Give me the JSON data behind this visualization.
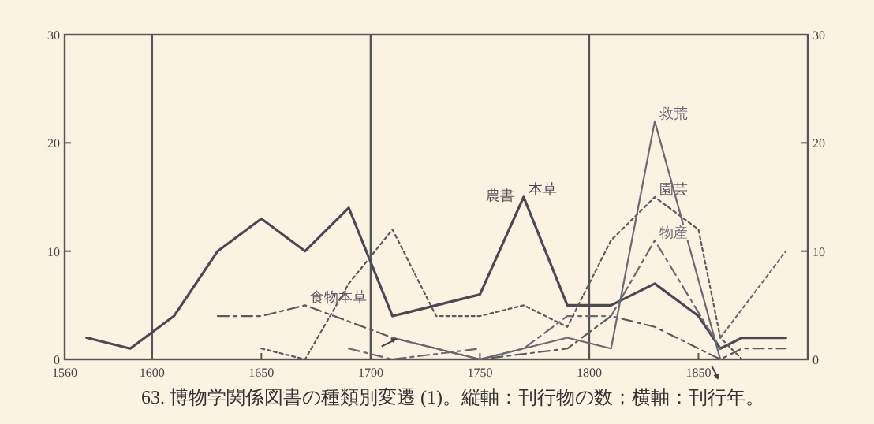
{
  "chart_data": {
    "type": "line",
    "title": "63. 博物学関係図書の種類別変遷 (1)。縦軸：刊行物の数；横軸：刊行年。",
    "xlim": [
      1560,
      1900
    ],
    "xticks": [
      1560,
      1600,
      1650,
      1700,
      1750,
      1800,
      1850
    ],
    "ylim": [
      0,
      30
    ],
    "yticks": [
      0,
      10,
      20,
      30
    ],
    "y2lim": [
      0,
      30
    ],
    "y2ticks": [
      0,
      10,
      20,
      30
    ],
    "grid": false,
    "marker": "none",
    "ref_lines": [
      {
        "axis": "x",
        "value": 1600,
        "color": "#555555"
      },
      {
        "axis": "x",
        "value": 1700,
        "color": "#555555"
      },
      {
        "axis": "x",
        "value": 1800,
        "color": "#555555"
      }
    ],
    "annotations": [
      {
        "text": "農書",
        "x": 1770,
        "y": 15
      }
    ],
    "series": [
      {
        "name": "本草",
        "color": "#4a4a55",
        "line_style": "solid",
        "x": [
          1570,
          1590,
          1610,
          1630,
          1650,
          1670,
          1690,
          1710,
          1750,
          1770,
          1790,
          1810,
          1830,
          1850,
          1860,
          1870,
          1890
        ],
        "values": [
          2,
          1,
          4,
          10,
          13,
          10,
          14,
          4,
          6,
          15,
          5,
          5,
          7,
          4,
          1,
          2,
          2
        ]
      },
      {
        "name": "食物本草",
        "color": "#5a5a60",
        "line_style": "dashed",
        "x": [
          1630,
          1650,
          1670,
          1710,
          1750,
          1790,
          1810,
          1830,
          1860,
          1870,
          1890
        ],
        "values": [
          4,
          4,
          5,
          2,
          0,
          1,
          4,
          3,
          0,
          1,
          1
        ]
      },
      {
        "name": "園芸",
        "color": "#5a5a60",
        "line_style": "dotted",
        "x": [
          1650,
          1670,
          1690,
          1710,
          1730,
          1750,
          1770,
          1790,
          1810,
          1830,
          1850,
          1860,
          1870
        ],
        "values": [
          1,
          0,
          7,
          12,
          4,
          4,
          5,
          3,
          11,
          15,
          12,
          2,
          0
        ]
      },
      {
        "name": "救荒",
        "color": "#6a6a72",
        "line_style": "solid",
        "x": [
          1710,
          1750,
          1790,
          1810,
          1830,
          1860
        ],
        "values": [
          2,
          0,
          2,
          1,
          22,
          0
        ]
      },
      {
        "name": "物産",
        "color": "#6a6a72",
        "line_style": "dashed",
        "x": [
          1750,
          1770,
          1790,
          1810,
          1830,
          1860
        ],
        "values": [
          0,
          1,
          4,
          4,
          11,
          1
        ]
      },
      {
        "color": "#6a6a72",
        "line_style": "dotted",
        "x": [
          1860,
          1890
        ],
        "values": [
          2,
          10
        ]
      },
      {
        "color": "#6a6a72",
        "line_style": "dashed",
        "x": [
          1690,
          1710,
          1750
        ],
        "values": [
          1,
          0,
          1
        ]
      }
    ]
  }
}
